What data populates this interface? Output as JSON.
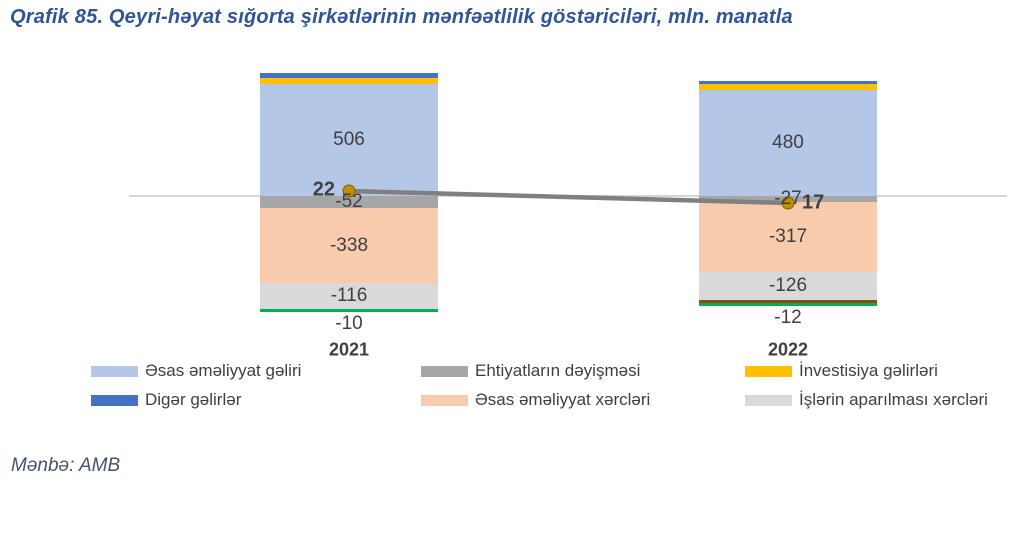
{
  "title": "Qrafik 85. Qeyri-həyat sığorta şirkətlərinin mənfəətlilik göstəriciləri, mln. manatla",
  "source": "Mənbə: AMB",
  "colors": {
    "core_income": "#b4c7e7",
    "other_income": "#4472c4",
    "investment_income": "#ffc000",
    "reserves_change": "#a6a6a6",
    "core_expenses": "#f8cbad",
    "admin_expenses": "#d9d9d9",
    "green_strip": "#00b050",
    "brown_strip": "#8a4a10",
    "line": "#808080",
    "marker_fill": "#bf8f00",
    "marker_edge": "#7f6000",
    "label_text": "#404040",
    "title_text": "#2f5597",
    "source_text": "#44546a",
    "axis_line": "#d6d6d6"
  },
  "chart_data": {
    "type": "bar",
    "subtype": "stacked-bar-with-line",
    "unit": "mln. manatla",
    "categories": [
      "2021",
      "2022"
    ],
    "bars": [
      {
        "category": "2021",
        "segments": [
          {
            "key": "other-income",
            "color": "other_income",
            "value": 22,
            "label": null
          },
          {
            "key": "investment-income",
            "color": "investment_income",
            "value": 27,
            "label": null
          },
          {
            "key": "core-income",
            "color": "core_income",
            "value": 506,
            "label": "506"
          },
          {
            "key": "reserves-change",
            "color": "reserves_change",
            "value": -52,
            "label": "-52"
          },
          {
            "key": "core-expenses",
            "color": "core_expenses",
            "value": -338,
            "label": "-338"
          },
          {
            "key": "admin-expenses",
            "color": "admin_expenses",
            "value": -116,
            "label": "-116"
          },
          {
            "key": "green-strip",
            "color": "green_strip",
            "value": -10,
            "label": null
          }
        ],
        "below_label": "-10",
        "line_value": 22,
        "line_label": "22"
      },
      {
        "category": "2022",
        "segments": [
          {
            "key": "other-income",
            "color": "other_income",
            "value": 14,
            "label": null
          },
          {
            "key": "investment-income",
            "color": "investment_income",
            "value": 27,
            "label": null
          },
          {
            "key": "core-income",
            "color": "core_income",
            "value": 480,
            "label": "480"
          },
          {
            "key": "reserves-change",
            "color": "reserves_change",
            "value": -27,
            "label": "-27"
          },
          {
            "key": "core-expenses",
            "color": "core_expenses",
            "value": -317,
            "label": "-317"
          },
          {
            "key": "admin-expenses",
            "color": "admin_expenses",
            "value": -126,
            "label": "-126"
          },
          {
            "key": "brown-strip",
            "color": "brown_strip",
            "value": -8,
            "label": null
          },
          {
            "key": "green-strip",
            "color": "green_strip",
            "value": -12,
            "label": null
          }
        ],
        "below_label": "-12",
        "line_value": 17,
        "line_label": "17"
      }
    ],
    "line_values": [
      22,
      17
    ],
    "legend_position": "bottom",
    "grid": false
  },
  "legend": {
    "items": [
      {
        "label": "Əsas əməliyyat gəliri",
        "color": "core_income"
      },
      {
        "label": "Ehtiyatların dəyişməsi",
        "color": "reserves_change"
      },
      {
        "label": "İnvestisiya gəlirləri",
        "color": "investment_income"
      },
      {
        "label": "Digər gəlirlər",
        "color": "other_income"
      },
      {
        "label": "Əsas əməliyyat xərcləri",
        "color": "core_expenses"
      },
      {
        "label": "İşlərin aparılması xərcləri",
        "color": "admin_expenses"
      }
    ]
  }
}
